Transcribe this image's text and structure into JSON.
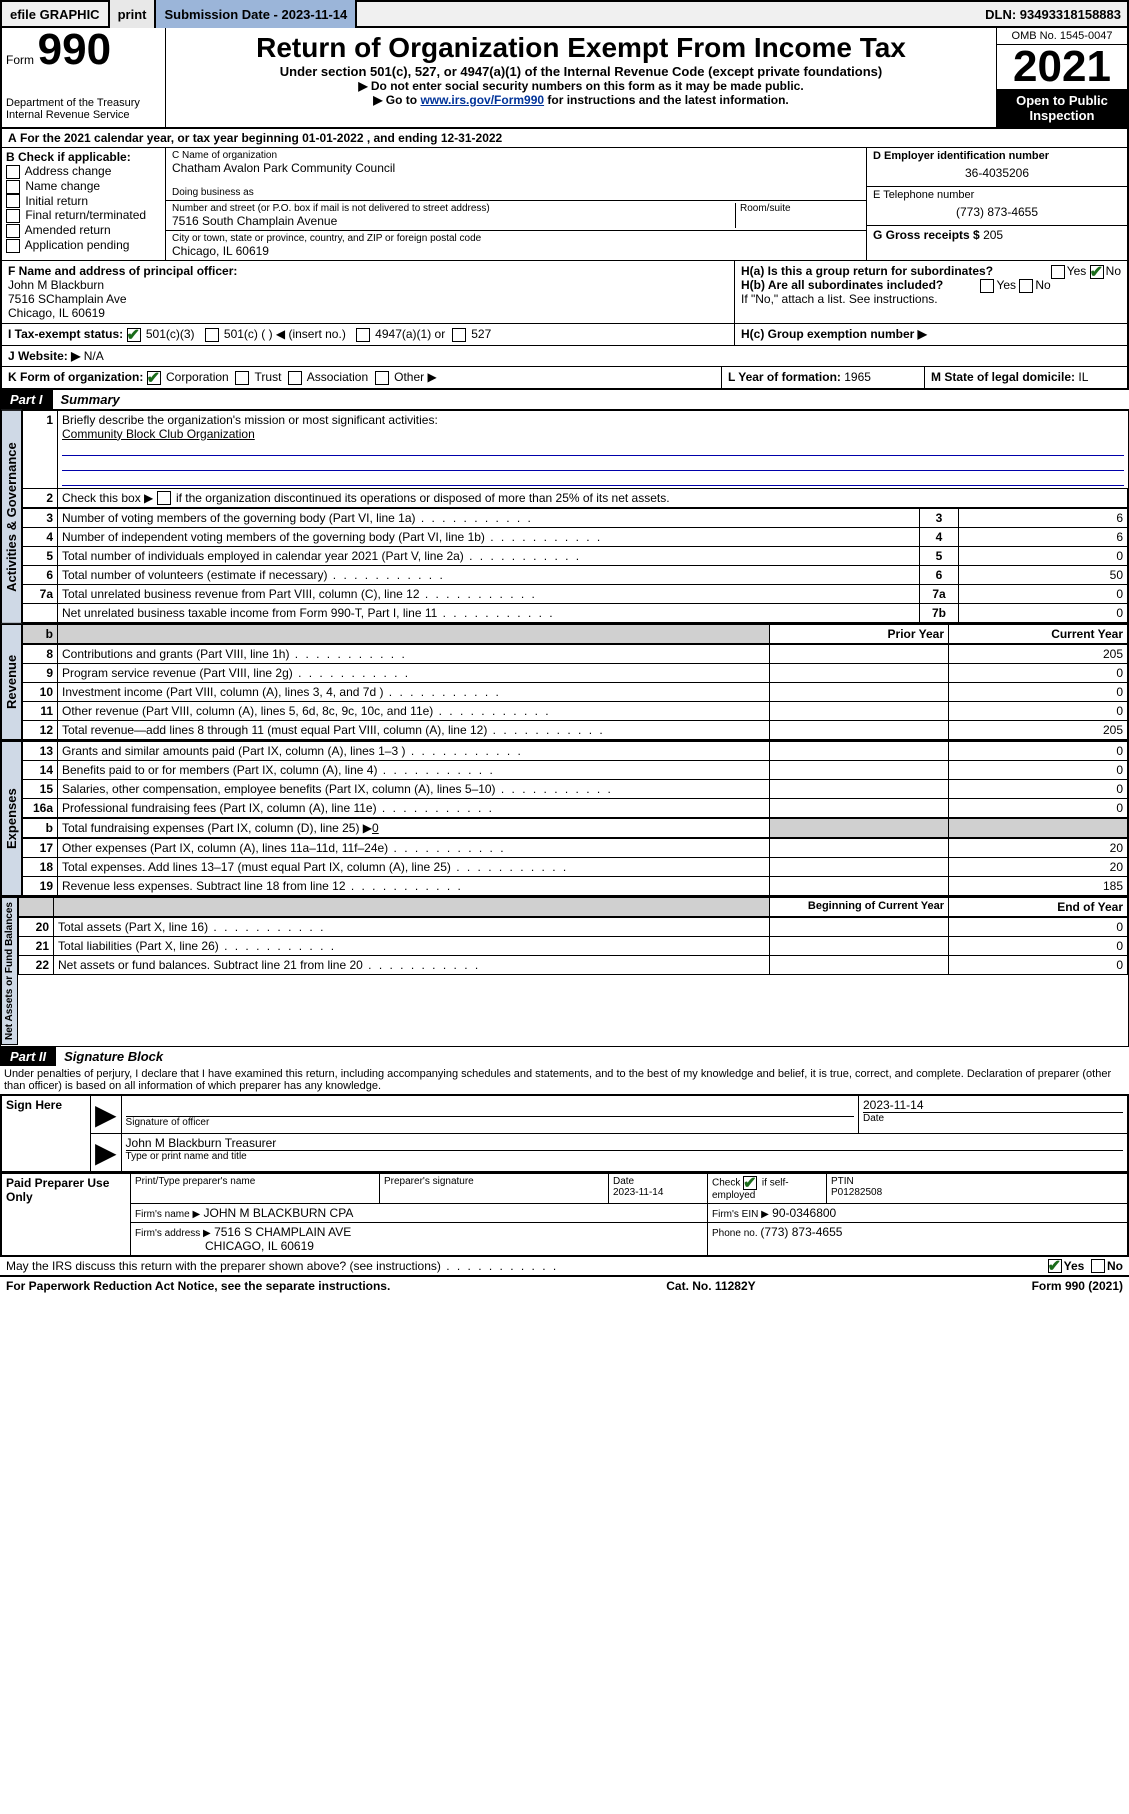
{
  "topbar": {
    "efile": "efile GRAPHIC",
    "print": "print",
    "subdate_label": "Submission Date - 2023-11-14",
    "dln": "DLN: 93493318158883"
  },
  "header": {
    "form_label": "Form",
    "form_number": "990",
    "dept": "Department of the Treasury\nInternal Revenue Service",
    "title": "Return of Organization Exempt From Income Tax",
    "sub1": "Under section 501(c), 527, or 4947(a)(1) of the Internal Revenue Code (except private foundations)",
    "sub2": "▶ Do not enter social security numbers on this form as it may be made public.",
    "sub3a": "▶ Go to ",
    "sub3link": "www.irs.gov/Form990",
    "sub3b": " for instructions and the latest information.",
    "omb": "OMB No. 1545-0047",
    "year": "2021",
    "pub": "Open to Public Inspection"
  },
  "rowA_label": "A",
  "rowA": " For the 2021 calendar year, or tax year beginning 01-01-2022   , and ending 12-31-2022",
  "B": {
    "title": "B Check if applicable:",
    "items": [
      "Address change",
      "Name change",
      "Initial return",
      "Final return/terminated",
      "Amended return",
      "Application pending"
    ]
  },
  "C": {
    "name_label": "C Name of organization",
    "name": "Chatham Avalon Park Community Council",
    "dba_label": "Doing business as",
    "addr_label": "Number and street (or P.O. box if mail is not delivered to street address)",
    "room_label": "Room/suite",
    "addr": "7516 South Champlain Avenue",
    "city_label": "City or town, state or province, country, and ZIP or foreign postal code",
    "city": "Chicago, IL  60619"
  },
  "D": {
    "ein_label": "D Employer identification number",
    "ein": "36-4035206",
    "tel_label": "E Telephone number",
    "tel": "(773) 873-4655",
    "gross_label": "G Gross receipts $ ",
    "gross": "205"
  },
  "F": {
    "label": "F  Name and address of principal officer:",
    "name": "John M Blackburn",
    "addr1": "7516 SChamplain Ave",
    "addr2": "Chicago, IL  60619"
  },
  "H": {
    "ha": "H(a)  Is this a group return for subordinates?",
    "hb": "H(b)  Are all subordinates included?",
    "hb2": "If \"No,\" attach a list. See instructions.",
    "hc": "H(c)  Group exemption number ▶",
    "yes": "Yes",
    "no": "No"
  },
  "I": {
    "label": "I   Tax-exempt status:",
    "o1": "501(c)(3)",
    "o2": "501(c) (  ) ◀ (insert no.)",
    "o3": "4947(a)(1) or",
    "o4": "527"
  },
  "J": {
    "label": "J   Website: ▶",
    "val": "N/A"
  },
  "K": {
    "label": "K Form of organization:",
    "o1": "Corporation",
    "o2": "Trust",
    "o3": "Association",
    "o4": "Other ▶"
  },
  "L": {
    "label": "L Year of formation: ",
    "val": "1965"
  },
  "M": {
    "label": "M State of legal domicile: ",
    "val": "IL"
  },
  "part1": {
    "label": "Part I",
    "title": "Summary"
  },
  "summary": {
    "l1_label": "1",
    "l1": "Briefly describe the organization's mission or most significant activities:",
    "l1_val": "Community Block Club Organization",
    "l2_label": "2",
    "l2a": "Check this box ▶",
    "l2b": " if the organization discontinued its operations or disposed of more than 25% of its net assets.",
    "rows": [
      {
        "n": "3",
        "d": "Number of voting members of the governing body (Part VI, line 1a)",
        "k": "3",
        "v": "6"
      },
      {
        "n": "4",
        "d": "Number of independent voting members of the governing body (Part VI, line 1b)",
        "k": "4",
        "v": "6"
      },
      {
        "n": "5",
        "d": "Total number of individuals employed in calendar year 2021 (Part V, line 2a)",
        "k": "5",
        "v": "0"
      },
      {
        "n": "6",
        "d": "Total number of volunteers (estimate if necessary)",
        "k": "6",
        "v": "50"
      },
      {
        "n": "7a",
        "d": "Total unrelated business revenue from Part VIII, column (C), line 12",
        "k": "7a",
        "v": "0"
      },
      {
        "n": "",
        "d": "Net unrelated business taxable income from Form 990-T, Part I, line 11",
        "k": "7b",
        "v": "0"
      }
    ],
    "col_prior": "Prior Year",
    "col_current": "Current Year",
    "rev": [
      {
        "n": "8",
        "d": "Contributions and grants (Part VIII, line 1h)",
        "p": "",
        "c": "205"
      },
      {
        "n": "9",
        "d": "Program service revenue (Part VIII, line 2g)",
        "p": "",
        "c": "0"
      },
      {
        "n": "10",
        "d": "Investment income (Part VIII, column (A), lines 3, 4, and 7d )",
        "p": "",
        "c": "0"
      },
      {
        "n": "11",
        "d": "Other revenue (Part VIII, column (A), lines 5, 6d, 8c, 9c, 10c, and 11e)",
        "p": "",
        "c": "0"
      },
      {
        "n": "12",
        "d": "Total revenue—add lines 8 through 11 (must equal Part VIII, column (A), line 12)",
        "p": "",
        "c": "205"
      }
    ],
    "exp": [
      {
        "n": "13",
        "d": "Grants and similar amounts paid (Part IX, column (A), lines 1–3 )",
        "p": "",
        "c": "0"
      },
      {
        "n": "14",
        "d": "Benefits paid to or for members (Part IX, column (A), line 4)",
        "p": "",
        "c": "0"
      },
      {
        "n": "15",
        "d": "Salaries, other compensation, employee benefits (Part IX, column (A), lines 5–10)",
        "p": "",
        "c": "0"
      },
      {
        "n": "16a",
        "d": "Professional fundraising fees (Part IX, column (A), line 11e)",
        "p": "",
        "c": "0"
      }
    ],
    "l16b_n": "b",
    "l16b": "Total fundraising expenses (Part IX, column (D), line 25) ▶",
    "l16b_val": "0",
    "exp2": [
      {
        "n": "17",
        "d": "Other expenses (Part IX, column (A), lines 11a–11d, 11f–24e)",
        "p": "",
        "c": "20"
      },
      {
        "n": "18",
        "d": "Total expenses. Add lines 13–17 (must equal Part IX, column (A), line 25)",
        "p": "",
        "c": "20"
      },
      {
        "n": "19",
        "d": "Revenue less expenses. Subtract line 18 from line 12",
        "p": "",
        "c": "185"
      }
    ],
    "col_begin": "Beginning of Current Year",
    "col_end": "End of Year",
    "net": [
      {
        "n": "20",
        "d": "Total assets (Part X, line 16)",
        "p": "",
        "c": "0"
      },
      {
        "n": "21",
        "d": "Total liabilities (Part X, line 26)",
        "p": "",
        "c": "0"
      },
      {
        "n": "22",
        "d": "Net assets or fund balances. Subtract line 21 from line 20",
        "p": "",
        "c": "0"
      }
    ]
  },
  "vlabels": {
    "gov": "Activities & Governance",
    "rev": "Revenue",
    "exp": "Expenses",
    "net": "Net Assets or Fund Balances"
  },
  "part2": {
    "label": "Part II",
    "title": "Signature Block"
  },
  "part2_decl": "Under penalties of perjury, I declare that I have examined this return, including accompanying schedules and statements, and to the best of my knowledge and belief, it is true, correct, and complete. Declaration of preparer (other than officer) is based on all information of which preparer has any knowledge.",
  "sign": {
    "here": "Sign Here",
    "sig_label": "Signature of officer",
    "date": "2023-11-14",
    "date_label": "Date",
    "name": "John M Blackburn  Treasurer",
    "name_label": "Type or print name and title"
  },
  "paid": {
    "title": "Paid Preparer Use Only",
    "c1": "Print/Type preparer's name",
    "c2": "Preparer's signature",
    "c3": "Date",
    "c3v": "2023-11-14",
    "c4a": "Check",
    "c4b": "if self-employed",
    "c5": "PTIN",
    "c5v": "P01282508",
    "firm_label": "Firm's name   ▶",
    "firm": "JOHN M BLACKBURN CPA",
    "fein_label": "Firm's EIN ▶",
    "fein": "90-0346800",
    "faddr_label": "Firm's address ▶",
    "faddr1": "7516 S CHAMPLAIN AVE",
    "faddr2": "CHICAGO, IL  60619",
    "phone_label": "Phone no. ",
    "phone": "(773) 873-4655"
  },
  "discuss": {
    "q": "May the IRS discuss this return with the preparer shown above? (see instructions)",
    "yes": "Yes",
    "no": "No"
  },
  "footer": {
    "left": "For Paperwork Reduction Act Notice, see the separate instructions.",
    "mid": "Cat. No. 11282Y",
    "right": "Form 990 (2021)"
  }
}
